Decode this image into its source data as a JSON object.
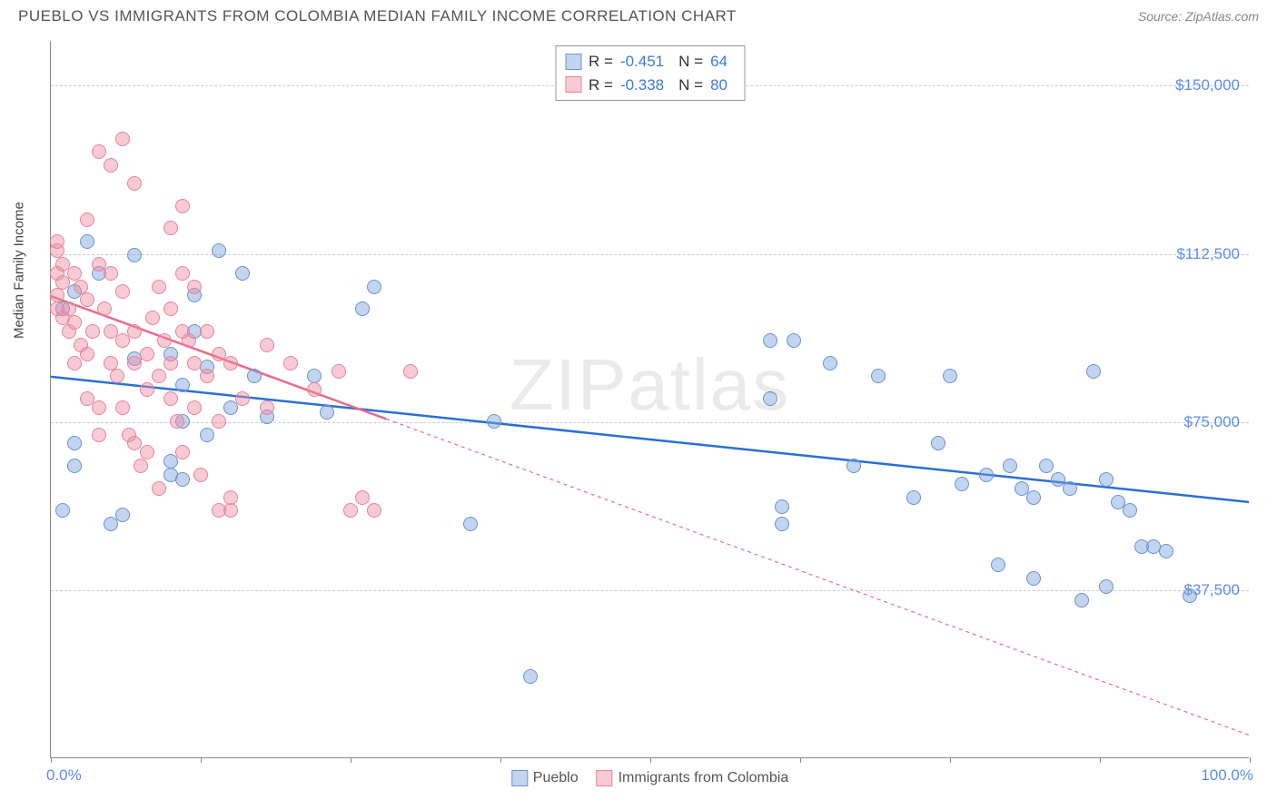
{
  "title": "PUEBLO VS IMMIGRANTS FROM COLOMBIA MEDIAN FAMILY INCOME CORRELATION CHART",
  "source": "Source: ZipAtlas.com",
  "watermark": "ZIPatlas",
  "y_axis_title": "Median Family Income",
  "chart": {
    "type": "scatter",
    "xlim": [
      0,
      100
    ],
    "ylim": [
      0,
      160000
    ],
    "x_ticks": [
      0,
      12.5,
      25,
      37.5,
      50,
      62.5,
      75,
      87.5,
      100
    ],
    "x_labels": {
      "0": "0.0%",
      "100": "100.0%"
    },
    "y_gridlines": [
      37500,
      75000,
      112500,
      150000
    ],
    "y_labels": {
      "37500": "$37,500",
      "75000": "$75,000",
      "112500": "$112,500",
      "150000": "$150,000"
    },
    "background_color": "#ffffff",
    "grid_color": "#cccccc",
    "point_radius": 8,
    "series": [
      {
        "name": "Pueblo",
        "fill_color": "rgba(120,160,220,0.45)",
        "stroke_color": "#6a94cf",
        "trend_color": "#2a6fd6",
        "trend_width": 2.5,
        "trend_dash": "none",
        "R": "-0.451",
        "N": "64",
        "trend_start": {
          "x": 0,
          "y": 85000
        },
        "trend_end": {
          "x": 100,
          "y": 57000
        },
        "points": [
          [
            1,
            100000
          ],
          [
            1,
            55000
          ],
          [
            2,
            104000
          ],
          [
            2,
            70000
          ],
          [
            2,
            65000
          ],
          [
            3,
            115000
          ],
          [
            4,
            108000
          ],
          [
            5,
            52000
          ],
          [
            6,
            54000
          ],
          [
            7,
            89000
          ],
          [
            7,
            112000
          ],
          [
            10,
            90000
          ],
          [
            10,
            66000
          ],
          [
            10,
            63000
          ],
          [
            11,
            83000
          ],
          [
            11,
            75000
          ],
          [
            11,
            62000
          ],
          [
            12,
            103000
          ],
          [
            12,
            95000
          ],
          [
            13,
            87000
          ],
          [
            13,
            72000
          ],
          [
            14,
            113000
          ],
          [
            15,
            78000
          ],
          [
            16,
            108000
          ],
          [
            17,
            85000
          ],
          [
            18,
            76000
          ],
          [
            22,
            85000
          ],
          [
            23,
            77000
          ],
          [
            26,
            100000
          ],
          [
            27,
            105000
          ],
          [
            35,
            52000
          ],
          [
            37,
            75000
          ],
          [
            40,
            18000
          ],
          [
            60,
            93000
          ],
          [
            60,
            80000
          ],
          [
            61,
            56000
          ],
          [
            61,
            52000
          ],
          [
            62,
            93000
          ],
          [
            65,
            88000
          ],
          [
            67,
            65000
          ],
          [
            72,
            58000
          ],
          [
            74,
            70000
          ],
          [
            75,
            85000
          ],
          [
            76,
            61000
          ],
          [
            78,
            63000
          ],
          [
            79,
            43000
          ],
          [
            80,
            65000
          ],
          [
            81,
            60000
          ],
          [
            82,
            58000
          ],
          [
            83,
            65000
          ],
          [
            84,
            62000
          ],
          [
            85,
            60000
          ],
          [
            86,
            35000
          ],
          [
            87,
            86000
          ],
          [
            88,
            62000
          ],
          [
            89,
            57000
          ],
          [
            90,
            55000
          ],
          [
            91,
            47000
          ],
          [
            92,
            47000
          ],
          [
            93,
            46000
          ],
          [
            95,
            36000
          ],
          [
            82,
            40000
          ],
          [
            88,
            38000
          ],
          [
            69,
            85000
          ]
        ]
      },
      {
        "name": "Immigrants from Colombia",
        "fill_color": "rgba(240,140,160,0.45)",
        "stroke_color": "#e9829b",
        "trend_color": "#e86b8a",
        "trend_width": 2.5,
        "trend_dash": "4,4",
        "trend_solid_until_x": 28,
        "R": "-0.338",
        "N": "80",
        "trend_start": {
          "x": 0,
          "y": 103000
        },
        "trend_end": {
          "x": 100,
          "y": 5000
        },
        "points": [
          [
            0.5,
            113000
          ],
          [
            0.5,
            108000
          ],
          [
            0.5,
            103000
          ],
          [
            0.5,
            100000
          ],
          [
            0.5,
            115000
          ],
          [
            1,
            98000
          ],
          [
            1,
            106000
          ],
          [
            1,
            110000
          ],
          [
            1.5,
            95000
          ],
          [
            1.5,
            100000
          ],
          [
            2,
            108000
          ],
          [
            2,
            97000
          ],
          [
            2,
            88000
          ],
          [
            2.5,
            105000
          ],
          [
            2.5,
            92000
          ],
          [
            3,
            120000
          ],
          [
            3,
            102000
          ],
          [
            3,
            90000
          ],
          [
            3,
            80000
          ],
          [
            3.5,
            95000
          ],
          [
            4,
            135000
          ],
          [
            4,
            110000
          ],
          [
            4,
            78000
          ],
          [
            4,
            72000
          ],
          [
            4.5,
            100000
          ],
          [
            5,
            132000
          ],
          [
            5,
            108000
          ],
          [
            5,
            95000
          ],
          [
            5,
            88000
          ],
          [
            5.5,
            85000
          ],
          [
            6,
            104000
          ],
          [
            6,
            93000
          ],
          [
            6,
            78000
          ],
          [
            6.5,
            72000
          ],
          [
            7,
            128000
          ],
          [
            7,
            95000
          ],
          [
            7,
            88000
          ],
          [
            7,
            70000
          ],
          [
            7.5,
            65000
          ],
          [
            8,
            90000
          ],
          [
            8,
            82000
          ],
          [
            8,
            68000
          ],
          [
            8.5,
            98000
          ],
          [
            9,
            105000
          ],
          [
            9,
            60000
          ],
          [
            9,
            85000
          ],
          [
            9.5,
            93000
          ],
          [
            10,
            118000
          ],
          [
            10,
            100000
          ],
          [
            10,
            88000
          ],
          [
            10,
            80000
          ],
          [
            10.5,
            75000
          ],
          [
            11,
            123000
          ],
          [
            11,
            108000
          ],
          [
            11,
            95000
          ],
          [
            11,
            68000
          ],
          [
            11.5,
            93000
          ],
          [
            12,
            105000
          ],
          [
            12,
            88000
          ],
          [
            12,
            78000
          ],
          [
            12.5,
            63000
          ],
          [
            13,
            95000
          ],
          [
            13,
            85000
          ],
          [
            14,
            90000
          ],
          [
            14,
            75000
          ],
          [
            15,
            88000
          ],
          [
            15,
            55000
          ],
          [
            16,
            80000
          ],
          [
            18,
            78000
          ],
          [
            18,
            92000
          ],
          [
            20,
            88000
          ],
          [
            22,
            82000
          ],
          [
            24,
            86000
          ],
          [
            25,
            55000
          ],
          [
            26,
            58000
          ],
          [
            27,
            55000
          ],
          [
            30,
            86000
          ],
          [
            15,
            58000
          ],
          [
            14,
            55000
          ],
          [
            6,
            138000
          ]
        ]
      }
    ]
  }
}
